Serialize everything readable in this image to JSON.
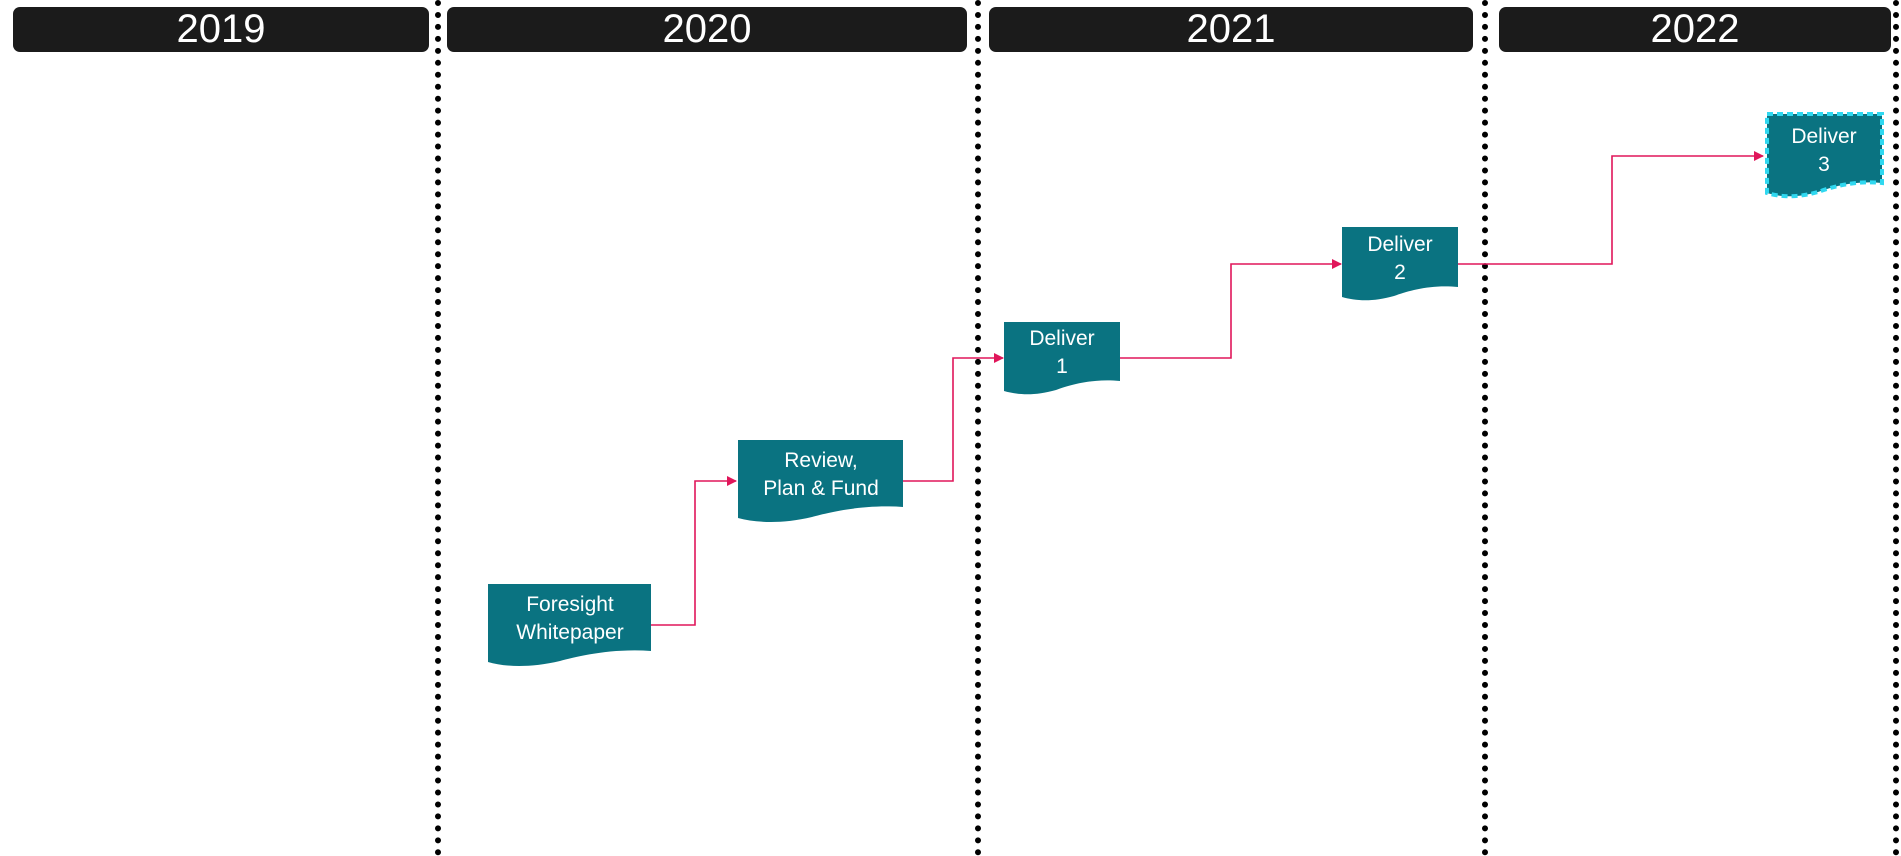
{
  "years": [
    "2019",
    "2020",
    "2021",
    "2022"
  ],
  "nodes": [
    {
      "line1": "Foresight",
      "line2": "Whitepaper"
    },
    {
      "line1": "Review,",
      "line2": "Plan & Fund"
    },
    {
      "line1": "Deliver",
      "line2": "1"
    },
    {
      "line1": "Deliver",
      "line2": "2"
    },
    {
      "line1": "Deliver",
      "line2": "3"
    }
  ],
  "colors": {
    "header_bg": "#1b1b1b",
    "node_fill": "#0a7381",
    "connector": "#e0165a",
    "highlight_border": "#2fd8f0"
  }
}
